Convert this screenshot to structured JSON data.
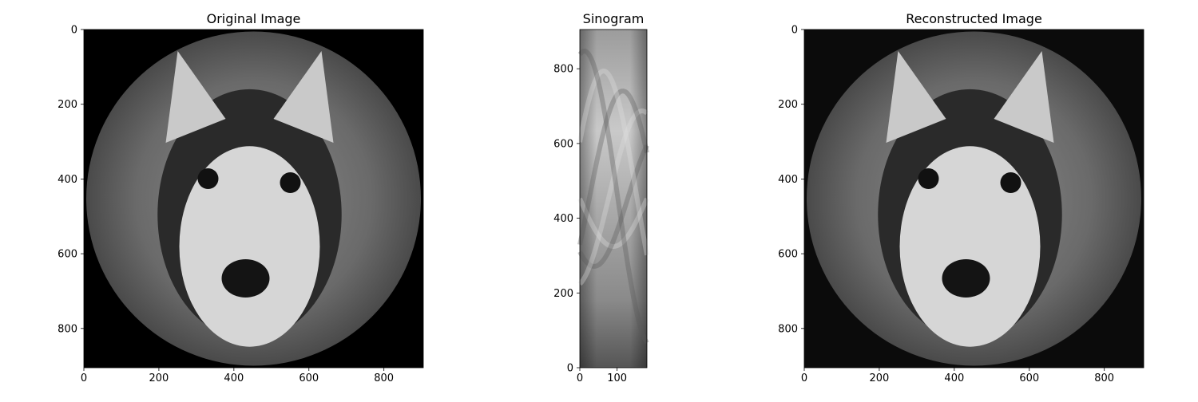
{
  "chart_data": [
    {
      "type": "heatmap",
      "title": "Original Image",
      "xlabel": "",
      "ylabel": "",
      "xlim": [
        0,
        905
      ],
      "ylim": [
        905,
        0
      ],
      "xticks": [
        0,
        200,
        400,
        600,
        800
      ],
      "yticks": [
        0,
        200,
        400,
        600,
        800
      ],
      "colormap": "gray",
      "content": "grayscale photograph of a husky face inside a circular field of view on a black background"
    },
    {
      "type": "heatmap",
      "title": "Sinogram",
      "xlabel": "",
      "ylabel": "",
      "xlim": [
        0,
        180
      ],
      "ylim": [
        0,
        905
      ],
      "xticks": [
        0,
        100
      ],
      "yticks": [
        0,
        200,
        400,
        600,
        800
      ],
      "colormap": "gray",
      "content": "radon transform projections over 180 angles"
    },
    {
      "type": "heatmap",
      "title": "Reconstructed Image",
      "xlabel": "",
      "ylabel": "",
      "xlim": [
        0,
        905
      ],
      "ylim": [
        905,
        0
      ],
      "xticks": [
        0,
        200,
        400,
        600,
        800
      ],
      "yticks": [
        0,
        200,
        400,
        600,
        800
      ],
      "colormap": "gray",
      "content": "filtered back-projection reconstruction of the husky image"
    }
  ]
}
